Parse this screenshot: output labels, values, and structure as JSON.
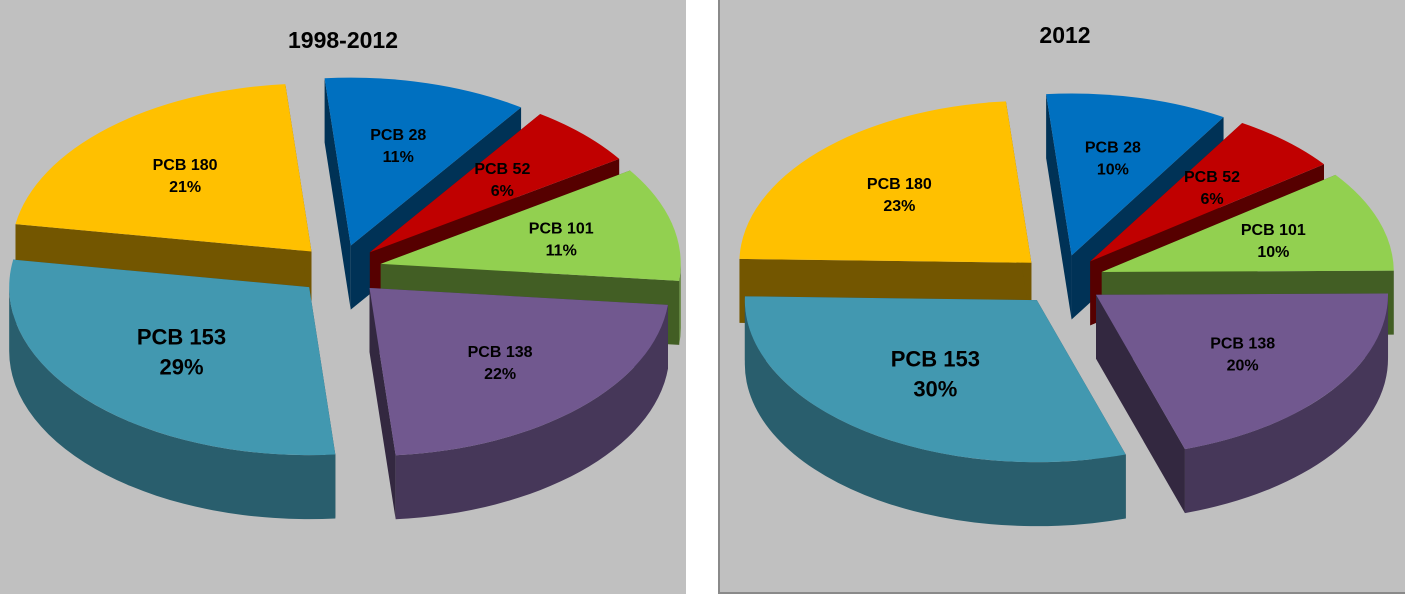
{
  "chart_data": [
    {
      "type": "pie",
      "title": "1998-2012",
      "slices": [
        {
          "label": "PCB 28",
          "value": 11,
          "value_label": "11%",
          "color": "#0070c0"
        },
        {
          "label": "PCB 52",
          "value": 6,
          "value_label": "6%",
          "color": "#c00000"
        },
        {
          "label": "PCB 101",
          "value": 11,
          "value_label": "11%",
          "color": "#92d050"
        },
        {
          "label": "PCB 138",
          "value": 22,
          "value_label": "22%",
          "color": "#71588f"
        },
        {
          "label": "PCB 153",
          "value": 29,
          "value_label": "29%",
          "color": "#4298b0"
        },
        {
          "label": "PCB 180",
          "value": 21,
          "value_label": "21%",
          "color": "#ffc000"
        }
      ]
    },
    {
      "type": "pie",
      "title": "2012",
      "slices": [
        {
          "label": "PCB 28",
          "value": 10,
          "value_label": "10%",
          "color": "#0070c0"
        },
        {
          "label": "PCB 52",
          "value": 6,
          "value_label": "6%",
          "color": "#c00000"
        },
        {
          "label": "PCB 101",
          "value": 10,
          "value_label": "10%",
          "color": "#92d050"
        },
        {
          "label": "PCB 138",
          "value": 20,
          "value_label": "20%",
          "color": "#71588f"
        },
        {
          "label": "PCB 153",
          "value": 30,
          "value_label": "30%",
          "color": "#4298b0"
        },
        {
          "label": "PCB 180",
          "value": 23,
          "value_label": "23%",
          "color": "#ffc000"
        }
      ]
    }
  ]
}
